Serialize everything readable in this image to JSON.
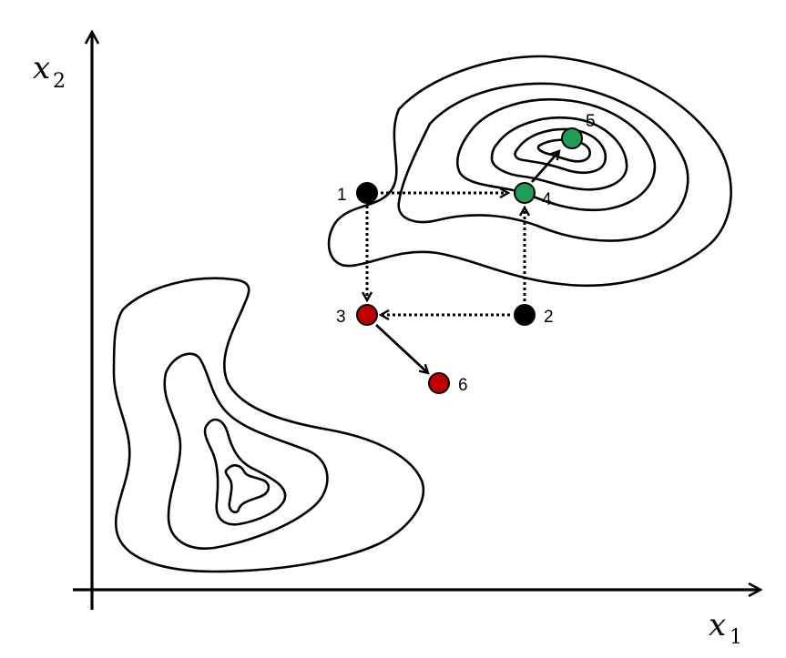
{
  "axes": {
    "x_label": {
      "var": "x",
      "sub": "1"
    },
    "y_label": {
      "var": "x",
      "sub": "2"
    }
  },
  "points": [
    {
      "label": "1",
      "color": "#000000"
    },
    {
      "label": "2",
      "color": "#000000"
    },
    {
      "label": "3",
      "color": "#c00000"
    },
    {
      "label": "4",
      "color": "#1f9d55"
    },
    {
      "label": "5",
      "color": "#1f9d55"
    },
    {
      "label": "6",
      "color": "#c00000"
    }
  ]
}
